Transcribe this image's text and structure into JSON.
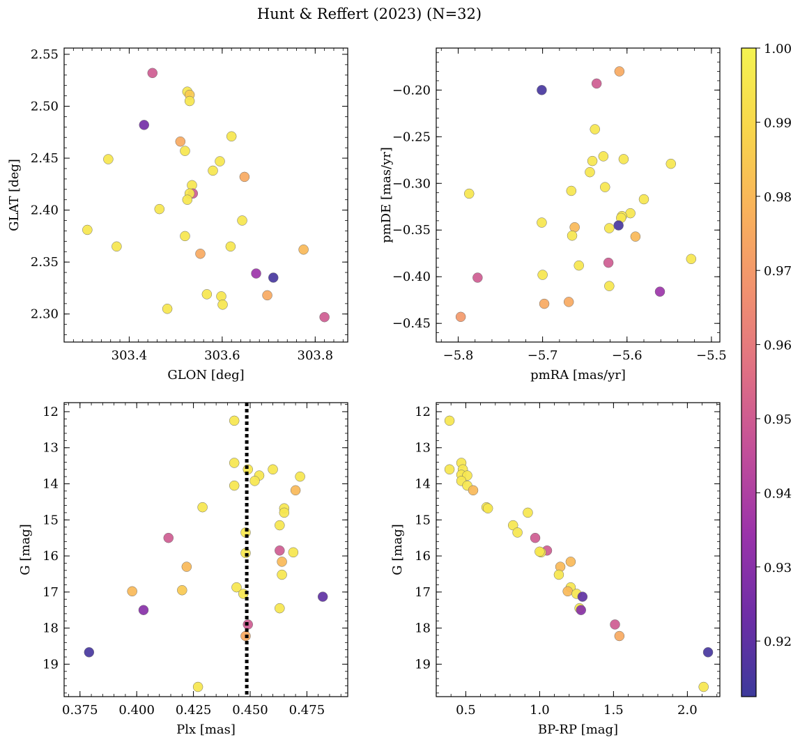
{
  "figure_title": "Hunt & Reffert (2023) (N=32)",
  "chart_data": [
    {
      "type": "scatter",
      "id": "sky",
      "xlabel": "GLON [deg]",
      "ylabel": "GLAT [deg]",
      "xlim": [
        303.26,
        303.87
      ],
      "ylim": [
        2.273,
        2.556
      ],
      "xticks": [
        303.4,
        303.6,
        303.8
      ],
      "xtick_labels": [
        "303.4",
        "303.6",
        "303.8"
      ],
      "yticks": [
        2.3,
        2.35,
        2.4,
        2.45,
        2.5,
        2.55
      ],
      "ytick_labels": [
        "2.30",
        "2.35",
        "2.40",
        "2.45",
        "2.50",
        "2.55"
      ],
      "xminor": 0.02,
      "yminor": 0.01,
      "points": [
        {
          "x": 303.45,
          "y": 2.532,
          "c": 0.95
        },
        {
          "x": 303.525,
          "y": 2.514,
          "c": 0.995
        },
        {
          "x": 303.53,
          "y": 2.511,
          "c": 0.985
        },
        {
          "x": 303.53,
          "y": 2.505,
          "c": 0.995
        },
        {
          "x": 303.432,
          "y": 2.482,
          "c": 0.925
        },
        {
          "x": 303.62,
          "y": 2.471,
          "c": 0.995
        },
        {
          "x": 303.51,
          "y": 2.466,
          "c": 0.975
        },
        {
          "x": 303.52,
          "y": 2.457,
          "c": 0.995
        },
        {
          "x": 303.355,
          "y": 2.449,
          "c": 0.995
        },
        {
          "x": 303.595,
          "y": 2.447,
          "c": 0.995
        },
        {
          "x": 303.58,
          "y": 2.438,
          "c": 0.995
        },
        {
          "x": 303.648,
          "y": 2.432,
          "c": 0.975
        },
        {
          "x": 303.535,
          "y": 2.424,
          "c": 0.995
        },
        {
          "x": 303.537,
          "y": 2.416,
          "c": 0.95
        },
        {
          "x": 303.53,
          "y": 2.416,
          "c": 0.995
        },
        {
          "x": 303.525,
          "y": 2.41,
          "c": 0.995
        },
        {
          "x": 303.465,
          "y": 2.401,
          "c": 0.995
        },
        {
          "x": 303.643,
          "y": 2.39,
          "c": 0.995
        },
        {
          "x": 303.31,
          "y": 2.381,
          "c": 0.995
        },
        {
          "x": 303.52,
          "y": 2.375,
          "c": 0.995
        },
        {
          "x": 303.373,
          "y": 2.365,
          "c": 0.995
        },
        {
          "x": 303.618,
          "y": 2.365,
          "c": 0.995
        },
        {
          "x": 303.775,
          "y": 2.362,
          "c": 0.98
        },
        {
          "x": 303.553,
          "y": 2.358,
          "c": 0.975
        },
        {
          "x": 303.673,
          "y": 2.339,
          "c": 0.935
        },
        {
          "x": 303.71,
          "y": 2.335,
          "c": 0.915
        },
        {
          "x": 303.567,
          "y": 2.319,
          "c": 0.995
        },
        {
          "x": 303.697,
          "y": 2.318,
          "c": 0.975
        },
        {
          "x": 303.598,
          "y": 2.317,
          "c": 0.995
        },
        {
          "x": 303.601,
          "y": 2.309,
          "c": 0.995
        },
        {
          "x": 303.482,
          "y": 2.305,
          "c": 0.995
        },
        {
          "x": 303.82,
          "y": 2.297,
          "c": 0.95
        }
      ]
    },
    {
      "type": "scatter",
      "id": "pm",
      "xlabel": "pmRA [mas/yr]",
      "ylabel": "pmDE [mas/yr]",
      "xlim": [
        -5.826,
        -5.49
      ],
      "ylim": [
        -0.47,
        -0.155
      ],
      "xticks": [
        -5.8,
        -5.7,
        -5.6,
        -5.5
      ],
      "xtick_labels": [
        "−5.8",
        "−5.7",
        "−5.6",
        "−5.5"
      ],
      "yticks": [
        -0.45,
        -0.4,
        -0.35,
        -0.3,
        -0.25,
        -0.2
      ],
      "ytick_labels": [
        "−0.45",
        "−0.40",
        "−0.35",
        "−0.30",
        "−0.25",
        "−0.20"
      ],
      "xminor": 0.02,
      "yminor": 0.01,
      "points": [
        {
          "x": -5.609,
          "y": -0.18,
          "c": 0.975
        },
        {
          "x": -5.701,
          "y": -0.2,
          "c": 0.915
        },
        {
          "x": -5.636,
          "y": -0.193,
          "c": 0.95
        },
        {
          "x": -5.638,
          "y": -0.242,
          "c": 0.995
        },
        {
          "x": -5.628,
          "y": -0.271,
          "c": 0.995
        },
        {
          "x": -5.604,
          "y": -0.274,
          "c": 0.995
        },
        {
          "x": -5.641,
          "y": -0.276,
          "c": 0.995
        },
        {
          "x": -5.548,
          "y": -0.279,
          "c": 0.995
        },
        {
          "x": -5.644,
          "y": -0.288,
          "c": 0.995
        },
        {
          "x": -5.626,
          "y": -0.304,
          "c": 0.995
        },
        {
          "x": -5.666,
          "y": -0.308,
          "c": 0.995
        },
        {
          "x": -5.787,
          "y": -0.311,
          "c": 0.995
        },
        {
          "x": -5.58,
          "y": -0.317,
          "c": 0.995
        },
        {
          "x": -5.596,
          "y": -0.332,
          "c": 0.995
        },
        {
          "x": -5.606,
          "y": -0.335,
          "c": 0.995
        },
        {
          "x": -5.607,
          "y": -0.337,
          "c": 0.995
        },
        {
          "x": -5.701,
          "y": -0.342,
          "c": 0.995
        },
        {
          "x": -5.61,
          "y": -0.345,
          "c": 0.915
        },
        {
          "x": -5.662,
          "y": -0.347,
          "c": 0.98
        },
        {
          "x": -5.621,
          "y": -0.348,
          "c": 0.995
        },
        {
          "x": -5.665,
          "y": -0.356,
          "c": 0.995
        },
        {
          "x": -5.59,
          "y": -0.357,
          "c": 0.98
        },
        {
          "x": -5.524,
          "y": -0.381,
          "c": 0.995
        },
        {
          "x": -5.622,
          "y": -0.385,
          "c": 0.95
        },
        {
          "x": -5.657,
          "y": -0.388,
          "c": 0.995
        },
        {
          "x": -5.7,
          "y": -0.398,
          "c": 0.995
        },
        {
          "x": -5.777,
          "y": -0.401,
          "c": 0.95
        },
        {
          "x": -5.621,
          "y": -0.41,
          "c": 0.995
        },
        {
          "x": -5.561,
          "y": -0.416,
          "c": 0.935
        },
        {
          "x": -5.669,
          "y": -0.427,
          "c": 0.975
        },
        {
          "x": -5.698,
          "y": -0.429,
          "c": 0.975
        },
        {
          "x": -5.797,
          "y": -0.443,
          "c": 0.97
        }
      ]
    },
    {
      "type": "scatter",
      "id": "plx",
      "xlabel": "Plx [mas]",
      "ylabel": "G [mag]",
      "xlim": [
        0.368,
        0.493
      ],
      "ylim": [
        19.9,
        11.75
      ],
      "xticks": [
        0.375,
        0.4,
        0.425,
        0.45,
        0.475
      ],
      "xtick_labels": [
        "0.375",
        "0.400",
        "0.425",
        "0.450",
        "0.475"
      ],
      "yticks": [
        12,
        13,
        14,
        15,
        16,
        17,
        18,
        19
      ],
      "ytick_labels": [
        "12",
        "13",
        "14",
        "15",
        "16",
        "17",
        "18",
        "19"
      ],
      "xminor": 0.005,
      "yminor": 0.2,
      "vline": {
        "x": 0.4485,
        "style": "dotted"
      },
      "points": [
        {
          "x": 0.443,
          "y": 12.25,
          "c": 0.995
        },
        {
          "x": 0.443,
          "y": 13.42,
          "c": 0.995
        },
        {
          "x": 0.449,
          "y": 13.6,
          "c": 0.995
        },
        {
          "x": 0.46,
          "y": 13.6,
          "c": 0.995
        },
        {
          "x": 0.454,
          "y": 13.77,
          "c": 0.995
        },
        {
          "x": 0.472,
          "y": 13.8,
          "c": 0.995
        },
        {
          "x": 0.452,
          "y": 13.92,
          "c": 0.995
        },
        {
          "x": 0.443,
          "y": 14.05,
          "c": 0.995
        },
        {
          "x": 0.47,
          "y": 14.18,
          "c": 0.98
        },
        {
          "x": 0.429,
          "y": 14.65,
          "c": 0.995
        },
        {
          "x": 0.465,
          "y": 14.68,
          "c": 0.995
        },
        {
          "x": 0.465,
          "y": 14.8,
          "c": 0.995
        },
        {
          "x": 0.463,
          "y": 15.15,
          "c": 0.995
        },
        {
          "x": 0.448,
          "y": 15.35,
          "c": 0.995
        },
        {
          "x": 0.414,
          "y": 15.5,
          "c": 0.95
        },
        {
          "x": 0.463,
          "y": 15.85,
          "c": 0.95
        },
        {
          "x": 0.469,
          "y": 15.9,
          "c": 0.995
        },
        {
          "x": 0.448,
          "y": 15.92,
          "c": 0.995
        },
        {
          "x": 0.464,
          "y": 16.16,
          "c": 0.98
        },
        {
          "x": 0.422,
          "y": 16.3,
          "c": 0.98
        },
        {
          "x": 0.464,
          "y": 16.52,
          "c": 0.995
        },
        {
          "x": 0.444,
          "y": 16.87,
          "c": 0.995
        },
        {
          "x": 0.42,
          "y": 16.95,
          "c": 0.985
        },
        {
          "x": 0.398,
          "y": 16.98,
          "c": 0.98
        },
        {
          "x": 0.447,
          "y": 17.05,
          "c": 0.995
        },
        {
          "x": 0.482,
          "y": 17.13,
          "c": 0.92
        },
        {
          "x": 0.463,
          "y": 17.45,
          "c": 0.995
        },
        {
          "x": 0.403,
          "y": 17.5,
          "c": 0.93
        },
        {
          "x": 0.449,
          "y": 17.9,
          "c": 0.95
        },
        {
          "x": 0.448,
          "y": 18.22,
          "c": 0.975
        },
        {
          "x": 0.379,
          "y": 18.67,
          "c": 0.915
        },
        {
          "x": 0.427,
          "y": 19.63,
          "c": 0.995
        }
      ]
    },
    {
      "type": "scatter",
      "id": "cmd",
      "xlabel": "BP-RP [mag]",
      "ylabel": "G [mag]",
      "xlim": [
        0.3,
        2.22
      ],
      "ylim": [
        19.9,
        11.75
      ],
      "xticks": [
        0.5,
        1.0,
        1.5,
        2.0
      ],
      "xtick_labels": [
        "0.5",
        "1.0",
        "1.5",
        "2.0"
      ],
      "yticks": [
        12,
        13,
        14,
        15,
        16,
        17,
        18,
        19
      ],
      "ytick_labels": [
        "12",
        "13",
        "14",
        "15",
        "16",
        "17",
        "18",
        "19"
      ],
      "xminor": 0.1,
      "yminor": 0.2,
      "points": [
        {
          "x": 0.39,
          "y": 12.25,
          "c": 0.995
        },
        {
          "x": 0.39,
          "y": 13.6,
          "c": 0.995
        },
        {
          "x": 0.47,
          "y": 13.42,
          "c": 0.995
        },
        {
          "x": 0.48,
          "y": 13.6,
          "c": 0.995
        },
        {
          "x": 0.47,
          "y": 13.75,
          "c": 0.995
        },
        {
          "x": 0.51,
          "y": 13.77,
          "c": 0.995
        },
        {
          "x": 0.47,
          "y": 13.92,
          "c": 0.995
        },
        {
          "x": 0.51,
          "y": 14.05,
          "c": 0.995
        },
        {
          "x": 0.55,
          "y": 14.18,
          "c": 0.98
        },
        {
          "x": 0.64,
          "y": 14.65,
          "c": 0.995
        },
        {
          "x": 0.65,
          "y": 14.68,
          "c": 0.995
        },
        {
          "x": 0.92,
          "y": 14.8,
          "c": 0.995
        },
        {
          "x": 0.82,
          "y": 15.15,
          "c": 0.995
        },
        {
          "x": 0.85,
          "y": 15.35,
          "c": 0.995
        },
        {
          "x": 0.97,
          "y": 15.5,
          "c": 0.95
        },
        {
          "x": 1.05,
          "y": 15.85,
          "c": 0.95
        },
        {
          "x": 1.01,
          "y": 15.9,
          "c": 0.995
        },
        {
          "x": 1.0,
          "y": 15.88,
          "c": 0.995
        },
        {
          "x": 1.21,
          "y": 16.16,
          "c": 0.98
        },
        {
          "x": 1.14,
          "y": 16.3,
          "c": 0.98
        },
        {
          "x": 1.13,
          "y": 16.52,
          "c": 0.995
        },
        {
          "x": 1.21,
          "y": 16.87,
          "c": 0.995
        },
        {
          "x": 1.19,
          "y": 16.98,
          "c": 0.98
        },
        {
          "x": 1.25,
          "y": 17.05,
          "c": 0.995
        },
        {
          "x": 1.29,
          "y": 17.13,
          "c": 0.92
        },
        {
          "x": 1.27,
          "y": 17.45,
          "c": 0.995
        },
        {
          "x": 1.28,
          "y": 17.5,
          "c": 0.93
        },
        {
          "x": 1.51,
          "y": 17.9,
          "c": 0.95
        },
        {
          "x": 1.54,
          "y": 18.22,
          "c": 0.975
        },
        {
          "x": 2.14,
          "y": 18.67,
          "c": 0.915
        },
        {
          "x": 2.11,
          "y": 19.63,
          "c": 0.995
        }
      ]
    }
  ],
  "colorbar": {
    "cmap": "plasma",
    "vmin": 0.9125,
    "vmax": 1.0,
    "ticks": [
      0.92,
      0.93,
      0.94,
      0.95,
      0.96,
      0.97,
      0.98,
      0.99,
      1.0
    ],
    "tick_labels": [
      "0.92",
      "0.93",
      "0.94",
      "0.95",
      "0.96",
      "0.97",
      "0.98",
      "0.99",
      "1.00"
    ],
    "stops": [
      "#3d3a9b",
      "#6e2ea6",
      "#9a33aa",
      "#c14e9a",
      "#df6f84",
      "#f1916f",
      "#f9b25b",
      "#f8d64b",
      "#f4f351"
    ]
  }
}
